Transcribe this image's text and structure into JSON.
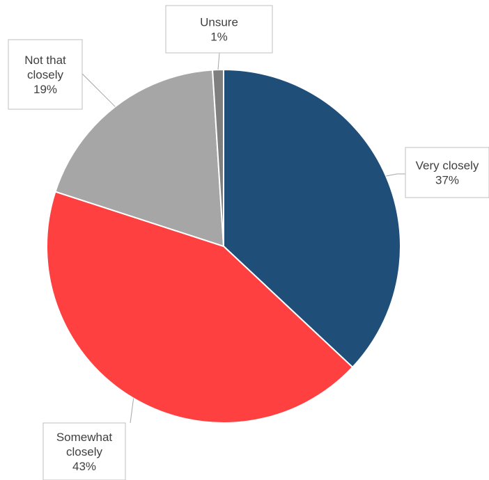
{
  "chart_data": {
    "type": "pie",
    "title": "",
    "start_angle_deg": 0,
    "direction": "clockwise",
    "slices": [
      {
        "name": "Very closely",
        "value": 37,
        "label_lines": [
          "Very closely",
          "37%"
        ],
        "color": "#1f4e79"
      },
      {
        "name": "Somewhat closely",
        "value": 43,
        "label_lines": [
          "Somewhat",
          "closely",
          "43%"
        ],
        "color": "#ff4040"
      },
      {
        "name": "Not that closely",
        "value": 19,
        "label_lines": [
          "Not that",
          "closely",
          "19%"
        ],
        "color": "#a6a6a6"
      },
      {
        "name": "Unsure",
        "value": 1,
        "label_lines": [
          "Unsure",
          "1%"
        ],
        "color": "#7f7f7f"
      }
    ],
    "legend": "none",
    "data_labels": "outside-with-leader-lines"
  }
}
